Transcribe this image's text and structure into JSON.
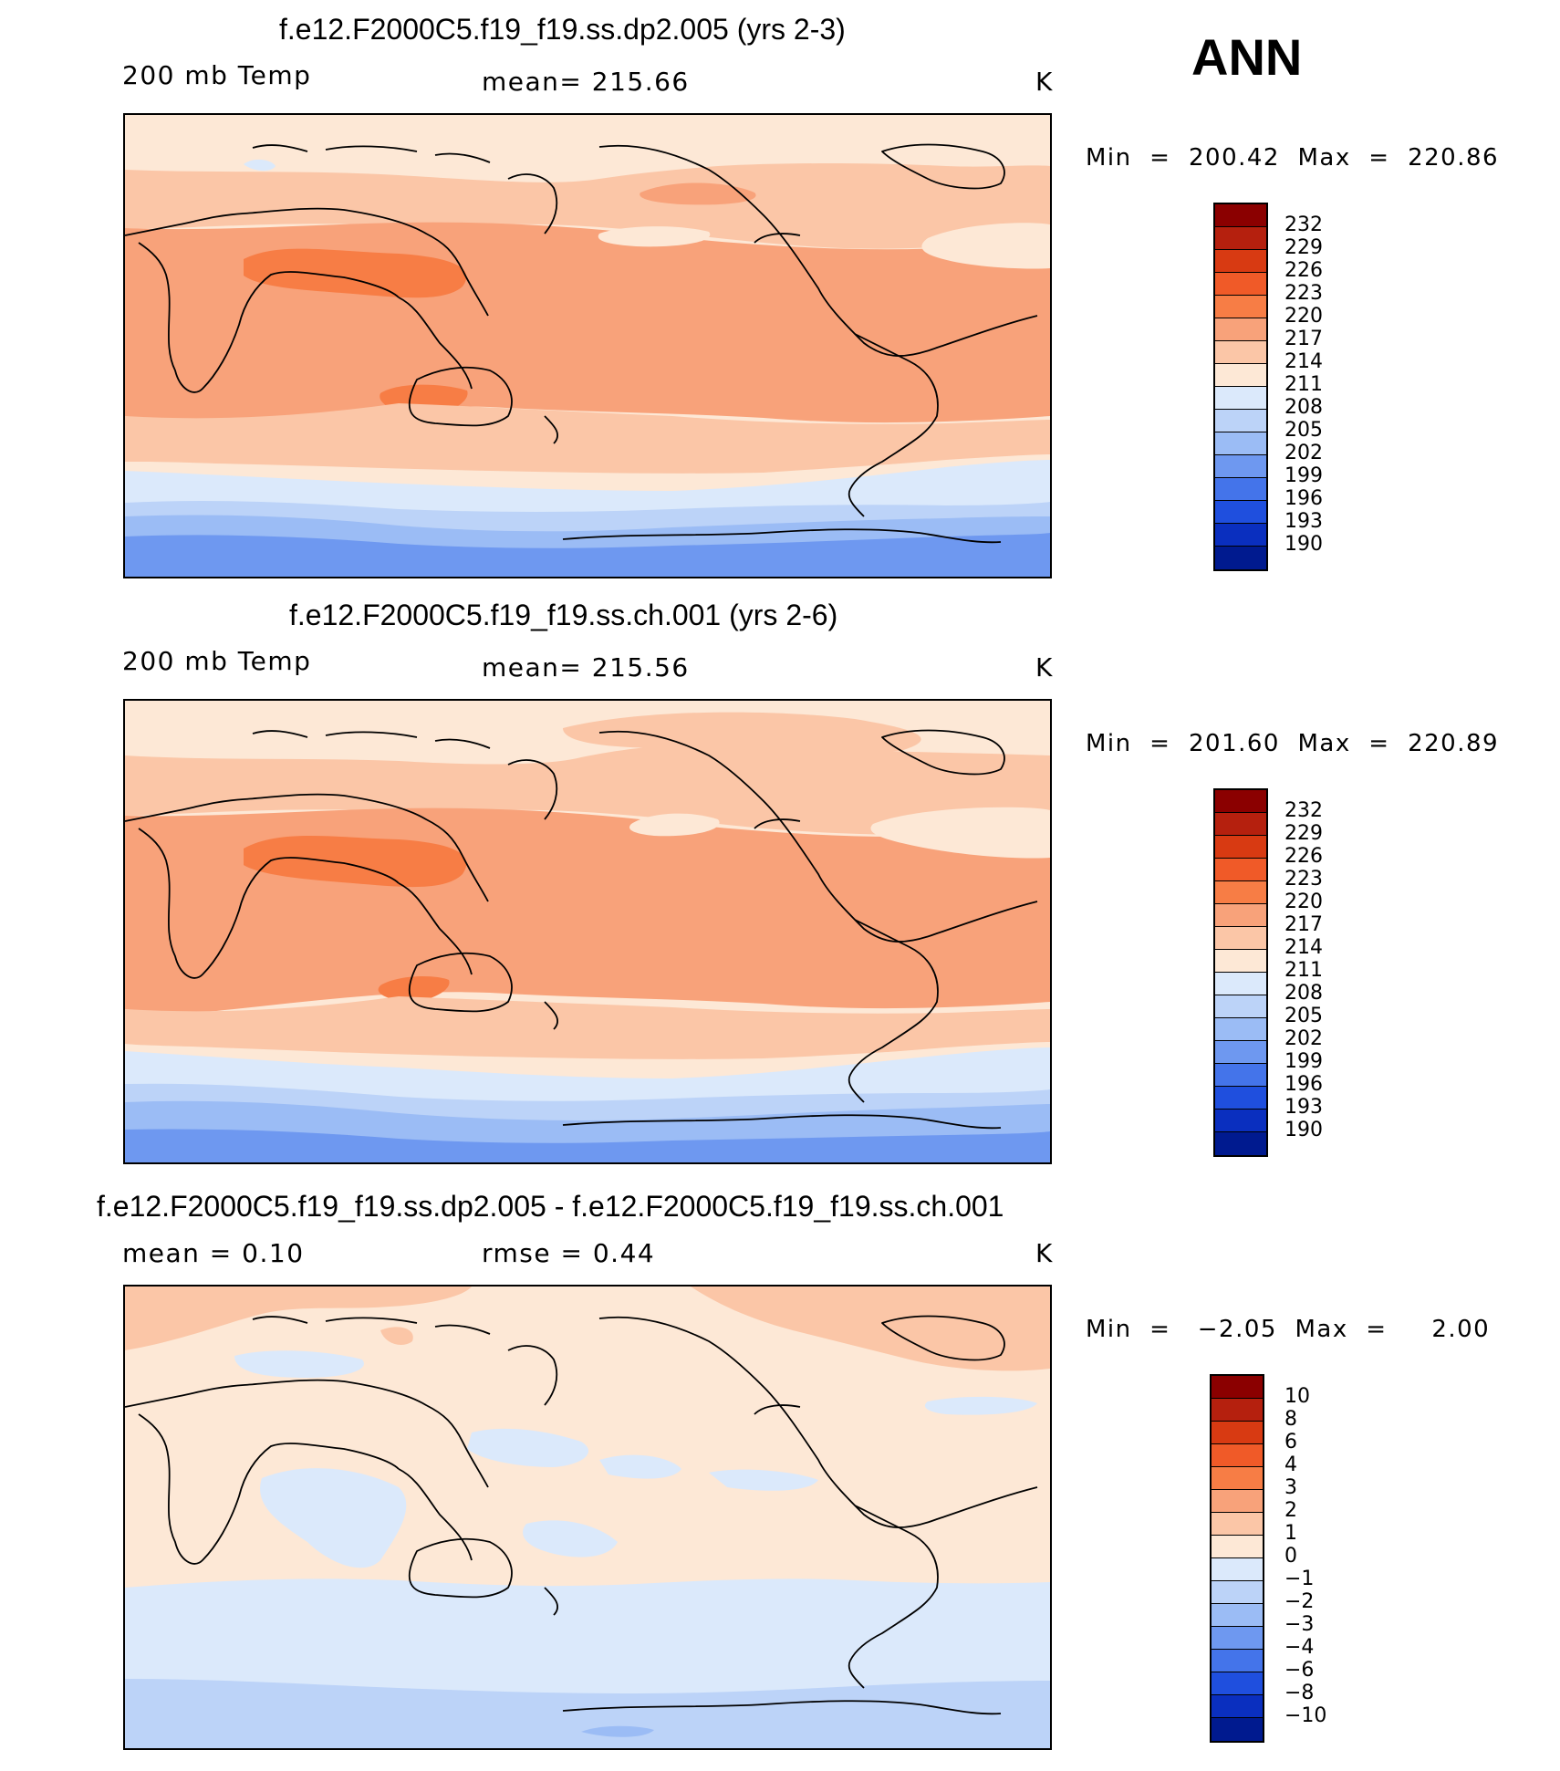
{
  "season": "ANN",
  "panels": [
    {
      "title": "f.e12.F2000C5.f19_f19.ss.dp2.005 (yrs 2-3)",
      "left_label": "200 mb Temp",
      "center_label": "mean=  215.66",
      "units": "K",
      "minmax": "Min  =  200.42  Max  =  220.86"
    },
    {
      "title": "f.e12.F2000C5.f19_f19.ss.ch.001 (yrs 2-6)",
      "left_label": "200 mb Temp",
      "center_label": "mean=  215.56",
      "units": "K",
      "minmax": "Min  =  201.60  Max  =  220.89"
    },
    {
      "title": "f.e12.F2000C5.f19_f19.ss.dp2.005 - f.e12.F2000C5.f19_f19.ss.ch.001",
      "left_label": "mean  =     0.10",
      "center_label": "rmse  =     0.44",
      "units": "K",
      "minmax": "Min  =   −2.05  Max  =     2.00"
    }
  ],
  "colorbars": {
    "temp": {
      "labels": [
        "232",
        "229",
        "226",
        "223",
        "220",
        "217",
        "214",
        "211",
        "208",
        "205",
        "202",
        "199",
        "196",
        "193",
        "190"
      ],
      "colors": [
        "#8b0000",
        "#b5200e",
        "#d83a12",
        "#f05a28",
        "#f77d45",
        "#f8a27a",
        "#fbc6a7",
        "#fde8d6",
        "#dbe9fb",
        "#bcd3f8",
        "#9bbcf5",
        "#6e98f0",
        "#4474ea",
        "#1f4fde",
        "#0a2fbf",
        "#001a8f"
      ]
    },
    "diff": {
      "labels": [
        "10",
        "8",
        "6",
        "4",
        "3",
        "2",
        "1",
        "0",
        "−1",
        "−2",
        "−3",
        "−4",
        "−6",
        "−8",
        "−10"
      ],
      "colors": [
        "#8b0000",
        "#b5200e",
        "#d83a12",
        "#f05a28",
        "#f77d45",
        "#f8a27a",
        "#fbc6a7",
        "#fde8d6",
        "#dbe9fb",
        "#bcd3f8",
        "#9bbcf5",
        "#6e98f0",
        "#4474ea",
        "#1f4fde",
        "#0a2fbf",
        "#001a8f"
      ]
    }
  }
}
